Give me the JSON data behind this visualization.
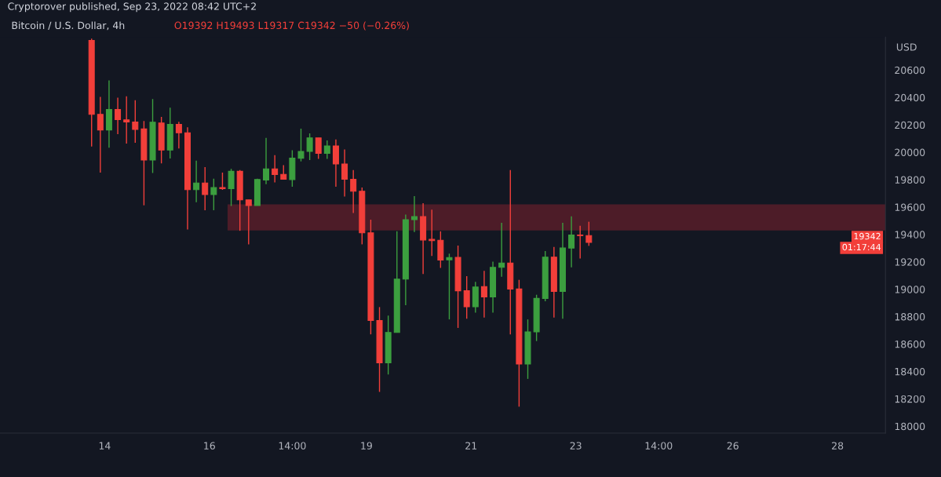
{
  "chart_data": {
    "type": "candlestick",
    "title": "Bitcoin / U.S. Dollar, 4h",
    "subtitle": "O19392 H19493 L19317 C19342 −50 (−0.26%)",
    "ylabel": "USD",
    "annotations": [
      "Cryptorover published, Sep 23, 2022 08:42 UTC+2",
      "19342",
      "01:17:44"
    ],
    "x": [
      "2022-09-13T18:00",
      "2022-09-13T22:00",
      "2022-09-14T02:00",
      "2022-09-14T06:00",
      "2022-09-14T10:00",
      "2022-09-14T14:00",
      "2022-09-14T18:00",
      "2022-09-14T22:00",
      "2022-09-15T02:00",
      "2022-09-15T06:00",
      "2022-09-15T10:00",
      "2022-09-15T14:00",
      "2022-09-15T18:00",
      "2022-09-15T22:00",
      "2022-09-16T02:00",
      "2022-09-16T06:00",
      "2022-09-16T10:00",
      "2022-09-16T14:00",
      "2022-09-16T18:00",
      "2022-09-16T22:00",
      "2022-09-17T02:00",
      "2022-09-17T06:00",
      "2022-09-17T10:00",
      "2022-09-17T14:00",
      "2022-09-17T18:00",
      "2022-09-17T22:00",
      "2022-09-18T02:00",
      "2022-09-18T06:00",
      "2022-09-18T10:00",
      "2022-09-18T14:00",
      "2022-09-18T18:00",
      "2022-09-18T22:00",
      "2022-09-19T02:00",
      "2022-09-19T06:00",
      "2022-09-19T10:00",
      "2022-09-19T14:00",
      "2022-09-19T18:00",
      "2022-09-19T22:00",
      "2022-09-20T02:00",
      "2022-09-20T06:00",
      "2022-09-20T10:00",
      "2022-09-20T14:00",
      "2022-09-20T18:00",
      "2022-09-20T22:00",
      "2022-09-21T02:00",
      "2022-09-21T06:00",
      "2022-09-21T10:00",
      "2022-09-21T14:00",
      "2022-09-21T18:00",
      "2022-09-21T22:00",
      "2022-09-22T02:00",
      "2022-09-22T06:00",
      "2022-09-22T10:00",
      "2022-09-22T14:00",
      "2022-09-22T18:00",
      "2022-09-22T22:00",
      "2022-09-23T02:00",
      "2022-09-23T06:00"
    ],
    "ohlc": [
      [
        20816,
        20830,
        20042,
        20277
      ],
      [
        20277,
        20404,
        19852,
        20163
      ],
      [
        20163,
        20525,
        20033,
        20313
      ],
      [
        20313,
        20398,
        20132,
        20239
      ],
      [
        20237,
        20409,
        20064,
        20221
      ],
      [
        20221,
        20380,
        20069,
        20167
      ],
      [
        20170,
        20228,
        19613,
        19944
      ],
      [
        19944,
        20389,
        19849,
        20219
      ],
      [
        20214,
        20259,
        19919,
        20017
      ],
      [
        20017,
        20326,
        19955,
        20203
      ],
      [
        20203,
        20223,
        20028,
        20142
      ],
      [
        20142,
        20183,
        19436,
        19727
      ],
      [
        19727,
        19939,
        19635,
        19776
      ],
      [
        19776,
        19892,
        19577,
        19691
      ],
      [
        19691,
        19807,
        19577,
        19742
      ],
      [
        19743,
        19852,
        19725,
        19735
      ],
      [
        19735,
        19879,
        19608,
        19861
      ],
      [
        19861,
        19870,
        19427,
        19653
      ],
      [
        19653,
        19653,
        19328,
        19612
      ],
      [
        19612,
        19807,
        19612,
        19801
      ],
      [
        19798,
        20105,
        19767,
        19879
      ],
      [
        19879,
        19979,
        19780,
        19838
      ],
      [
        19839,
        19906,
        19803,
        19803
      ],
      [
        19801,
        20015,
        19749,
        19957
      ],
      [
        19957,
        20172,
        19933,
        20006
      ],
      [
        20006,
        20138,
        19943,
        20105
      ],
      [
        20105,
        20105,
        19952,
        19993
      ],
      [
        19993,
        20087,
        19952,
        20046
      ],
      [
        20046,
        20093,
        19749,
        19915
      ],
      [
        19915,
        20020,
        19677,
        19803
      ],
      [
        19803,
        19870,
        19557,
        19716
      ],
      [
        19716,
        19743,
        19328,
        19412
      ],
      [
        19412,
        19508,
        18671,
        18772
      ],
      [
        18772,
        18870,
        18251,
        18463
      ],
      [
        18463,
        18808,
        18378,
        18685
      ],
      [
        18685,
        19423,
        18685,
        19074
      ],
      [
        19074,
        19545,
        18884,
        19508
      ],
      [
        19508,
        19680,
        19418,
        19530
      ],
      [
        19530,
        19629,
        19111,
        19360
      ],
      [
        19364,
        19581,
        19243,
        19355
      ],
      [
        19358,
        19423,
        19156,
        19214
      ],
      [
        19215,
        19260,
        18780,
        19232
      ],
      [
        19233,
        19319,
        18718,
        18989
      ],
      [
        18989,
        19096,
        18785,
        18872
      ],
      [
        18872,
        19054,
        18830,
        19016
      ],
      [
        19020,
        19134,
        18794,
        18944
      ],
      [
        18944,
        19201,
        18830,
        19160
      ],
      [
        19160,
        19485,
        19092,
        19192
      ],
      [
        19192,
        19870,
        18671,
        19002
      ],
      [
        19002,
        19069,
        18143,
        18454
      ],
      [
        18454,
        18780,
        18346,
        18689
      ],
      [
        18689,
        18960,
        18622,
        18933
      ],
      [
        18933,
        19279,
        18912,
        19235
      ],
      [
        19235,
        19309,
        18794,
        18984
      ],
      [
        18984,
        19485,
        18785,
        19301
      ],
      [
        19301,
        19532,
        19160,
        19396
      ],
      [
        19396,
        19463,
        19225,
        19392
      ],
      [
        19392,
        19493,
        19317,
        19342
      ]
    ],
    "colors": [
      "#f23f3a",
      "#f23f3a",
      "#3c9f3f",
      "#f23f3a",
      "#f23f3a",
      "#f23f3a",
      "#f23f3a",
      "#3c9f3f",
      "#f23f3a",
      "#3c9f3f",
      "#f23f3a",
      "#f23f3a",
      "#3c9f3f",
      "#f23f3a",
      "#3c9f3f",
      "#f23f3a",
      "#3c9f3f",
      "#f23f3a",
      "#f23f3a",
      "#3c9f3f",
      "#3c9f3f",
      "#f23f3a",
      "#f23f3a",
      "#3c9f3f",
      "#3c9f3f",
      "#3c9f3f",
      "#f23f3a",
      "#3c9f3f",
      "#f23f3a",
      "#f23f3a",
      "#f23f3a",
      "#f23f3a",
      "#f23f3a",
      "#f23f3a",
      "#3c9f3f",
      "#3c9f3f",
      "#3c9f3f",
      "#3c9f3f",
      "#f23f3a",
      "#f23f3a",
      "#f23f3a",
      "#3c9f3f",
      "#f23f3a",
      "#f23f3a",
      "#3c9f3f",
      "#f23f3a",
      "#3c9f3f",
      "#3c9f3f",
      "#f23f3a",
      "#f23f3a",
      "#3c9f3f",
      "#3c9f3f",
      "#3c9f3f",
      "#f23f3a",
      "#3c9f3f",
      "#3c9f3f",
      "#f23f3a",
      "#f23f3a"
    ],
    "xlim": [
      "2022-09-12T00:00",
      "2022-09-28T22:00"
    ],
    "xticks": [
      {
        "value": "2022-09-14",
        "label": "14"
      },
      {
        "value": "2022-09-16",
        "label": "16"
      },
      {
        "value": "2022-09-17T14:00",
        "label": "14:00"
      },
      {
        "value": "2022-09-19",
        "label": "19"
      },
      {
        "value": "2022-09-21",
        "label": "21"
      },
      {
        "value": "2022-09-23",
        "label": "23"
      },
      {
        "value": "2022-09-24T14:00",
        "label": "14:00"
      },
      {
        "value": "2022-09-26",
        "label": "26"
      },
      {
        "value": "2022-09-28",
        "label": "28"
      }
    ],
    "ylim": [
      17950,
      20840
    ],
    "yticks": [
      18000,
      18200,
      18400,
      18600,
      18800,
      19000,
      19200,
      19400,
      19600,
      19800,
      20000,
      20200,
      20400,
      20600
    ],
    "bands": [
      {
        "axis": "y",
        "from": 19430,
        "to": 19620,
        "color": "#5c1e2a"
      }
    ]
  }
}
